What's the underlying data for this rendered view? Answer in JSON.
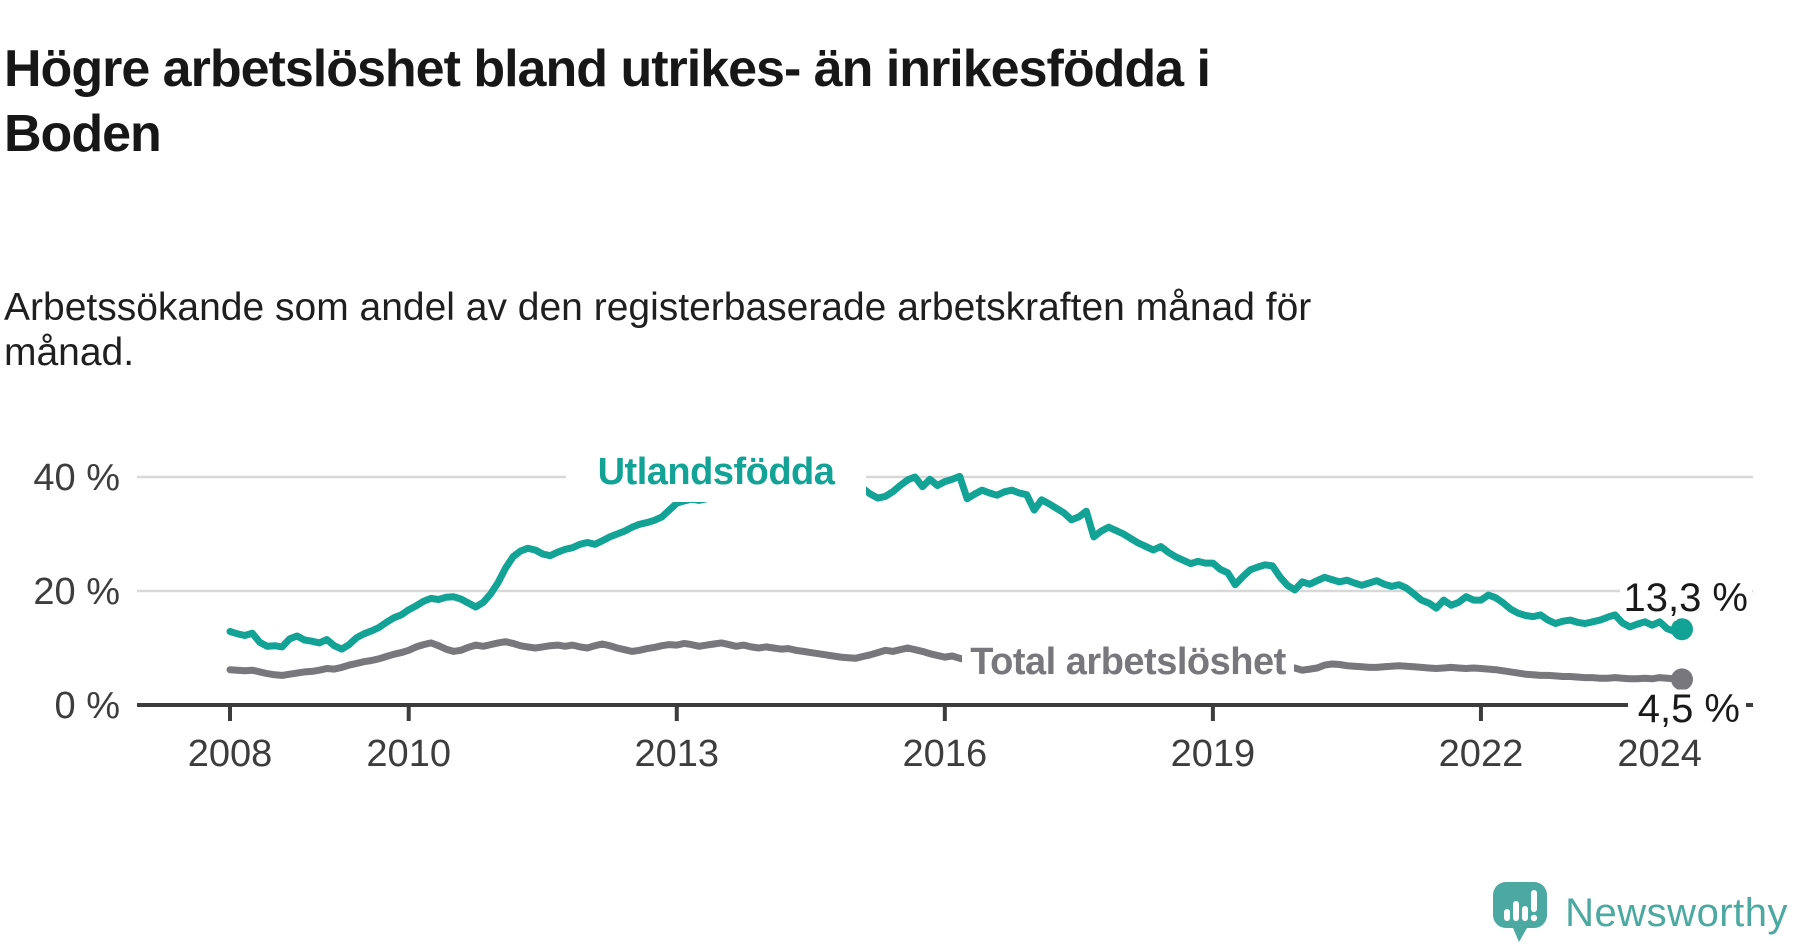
{
  "title_lines": [
    "Högre arbetslöshet bland utrikes- än inrikesfödda i",
    "Boden"
  ],
  "title": "Högre arbetslöshet bland utrikes- än inrikesfödda i Boden",
  "subtitle_lines": [
    "Arbetssökande som andel av den registerbaserade arbetskraften månad för",
    "månad."
  ],
  "colors": {
    "accent_teal": "#12a296",
    "series_gray": "#77777c",
    "text_dark": "#1a1a1a",
    "grid_gray": "#d8d8d8",
    "axis_dark": "#3c3c3c",
    "logo_teal": "#4ba9a1"
  },
  "chart_data": {
    "type": "line",
    "x_unit": "month",
    "x_range": [
      "2008-01",
      "2024-04"
    ],
    "value_unit": "%",
    "grid": "horizontal",
    "legend_position": "inline-on-line",
    "yticks": [
      "0 %",
      "20 %",
      "40 %"
    ],
    "ytick_values": [
      0,
      20,
      40
    ],
    "ylim": [
      0,
      48
    ],
    "xticks": [
      2008,
      2010,
      2013,
      2016,
      2019,
      2022,
      2024
    ],
    "series": [
      {
        "name": "Utlandsfödda",
        "color": "#12a296",
        "end_label": "13,3 %",
        "end_value": 13.3,
        "values": [
          12.9,
          12.5,
          12.2,
          12.6,
          11.0,
          10.3,
          10.4,
          10.2,
          11.6,
          12.1,
          11.4,
          11.2,
          10.9,
          11.5,
          10.4,
          9.8,
          10.6,
          11.8,
          12.5,
          13.0,
          13.6,
          14.5,
          15.3,
          15.8,
          16.7,
          17.4,
          18.2,
          18.7,
          18.5,
          18.9,
          19.0,
          18.6,
          17.9,
          17.2,
          18.0,
          19.5,
          21.5,
          24.0,
          26.0,
          27.0,
          27.5,
          27.2,
          26.5,
          26.2,
          26.8,
          27.3,
          27.6,
          28.2,
          28.5,
          28.2,
          28.8,
          29.5,
          30.0,
          30.5,
          31.2,
          31.7,
          32.0,
          32.4,
          33.0,
          34.2,
          35.4,
          35.8,
          36.1,
          35.9,
          36.2,
          36.5,
          36.3,
          36.7,
          36.9,
          37.1,
          36.9,
          37.3,
          37.5,
          37.7,
          37.9,
          37.6,
          37.9,
          38.2,
          38.0,
          38.3,
          38.5,
          38.2,
          38.4,
          38.6,
          38.6,
          38.0,
          37.0,
          36.3,
          36.6,
          37.4,
          38.5,
          39.5,
          40.0,
          38.3,
          39.6,
          38.5,
          39.2,
          39.6,
          40.1,
          36.2,
          37.0,
          37.7,
          37.2,
          36.8,
          37.4,
          37.7,
          37.2,
          36.9,
          34.2,
          36.0,
          35.3,
          34.5,
          33.7,
          32.5,
          33.0,
          34.0,
          29.5,
          30.5,
          31.2,
          30.6,
          30.0,
          29.2,
          28.4,
          27.8,
          27.2,
          27.8,
          26.8,
          26.0,
          25.4,
          24.8,
          25.2,
          24.9,
          24.9,
          23.8,
          23.2,
          21.1,
          22.5,
          23.7,
          24.2,
          24.6,
          24.4,
          22.5,
          21.0,
          20.2,
          21.6,
          21.2,
          21.8,
          22.4,
          22.0,
          21.6,
          21.9,
          21.4,
          21.0,
          21.4,
          21.8,
          21.2,
          20.8,
          21.1,
          20.5,
          19.5,
          18.4,
          17.9,
          17.0,
          18.4,
          17.5,
          18.0,
          19.0,
          18.4,
          18.4,
          19.3,
          18.8,
          17.9,
          16.8,
          16.1,
          15.7,
          15.5,
          15.8,
          14.9,
          14.3,
          14.7,
          14.9,
          14.5,
          14.3,
          14.6,
          14.9,
          15.4,
          15.8,
          14.4,
          13.7,
          14.2,
          14.6,
          14.0,
          14.6,
          13.4,
          12.9,
          13.3
        ]
      },
      {
        "name": "Total arbetslöshet",
        "color": "#77777c",
        "end_label": "4,5 %",
        "end_value": 4.5,
        "values": [
          6.2,
          6.1,
          6.0,
          6.1,
          5.8,
          5.5,
          5.3,
          5.2,
          5.4,
          5.6,
          5.8,
          5.9,
          6.1,
          6.4,
          6.3,
          6.6,
          7.0,
          7.3,
          7.6,
          7.8,
          8.1,
          8.5,
          8.9,
          9.2,
          9.6,
          10.2,
          10.6,
          10.9,
          10.4,
          9.8,
          9.4,
          9.6,
          10.1,
          10.5,
          10.3,
          10.6,
          10.9,
          11.1,
          10.8,
          10.4,
          10.2,
          10.0,
          10.2,
          10.4,
          10.5,
          10.3,
          10.5,
          10.2,
          10.0,
          10.4,
          10.7,
          10.4,
          10.0,
          9.7,
          9.4,
          9.6,
          9.9,
          10.1,
          10.4,
          10.6,
          10.5,
          10.8,
          10.6,
          10.3,
          10.5,
          10.7,
          10.9,
          10.6,
          10.3,
          10.5,
          10.2,
          10.0,
          10.2,
          10.0,
          9.8,
          9.9,
          9.6,
          9.4,
          9.2,
          9.0,
          8.8,
          8.6,
          8.4,
          8.3,
          8.2,
          8.5,
          8.8,
          9.2,
          9.6,
          9.4,
          9.7,
          10.0,
          9.7,
          9.4,
          9.0,
          8.7,
          8.4,
          8.6,
          8.2,
          7.9,
          8.1,
          8.3,
          8.5,
          8.3,
          8.1,
          8.2,
          8.0,
          7.9,
          7.8,
          7.9,
          7.7,
          7.6,
          7.5,
          7.4,
          7.5,
          7.3,
          7.2,
          7.3,
          7.1,
          7.0,
          7.0,
          7.1,
          6.9,
          6.8,
          6.9,
          6.7,
          6.8,
          6.6,
          6.7,
          6.5,
          6.6,
          6.6,
          6.7,
          6.6,
          6.5,
          6.4,
          6.5,
          6.6,
          6.5,
          6.4,
          6.5,
          6.5,
          6.6,
          6.5,
          6.1,
          6.3,
          6.5,
          7.0,
          7.2,
          7.1,
          6.9,
          6.8,
          6.7,
          6.6,
          6.6,
          6.7,
          6.8,
          6.9,
          6.8,
          6.7,
          6.6,
          6.5,
          6.4,
          6.5,
          6.6,
          6.5,
          6.4,
          6.5,
          6.4,
          6.3,
          6.2,
          6.0,
          5.8,
          5.6,
          5.4,
          5.3,
          5.2,
          5.2,
          5.1,
          5.0,
          5.0,
          4.9,
          4.8,
          4.8,
          4.7,
          4.7,
          4.8,
          4.7,
          4.6,
          4.6,
          4.7,
          4.6,
          4.8,
          4.7,
          4.6,
          4.5
        ]
      }
    ]
  },
  "logo": {
    "text": "Newsworthy",
    "icon": "newsworthy-speech-bubble-bar-chart"
  }
}
